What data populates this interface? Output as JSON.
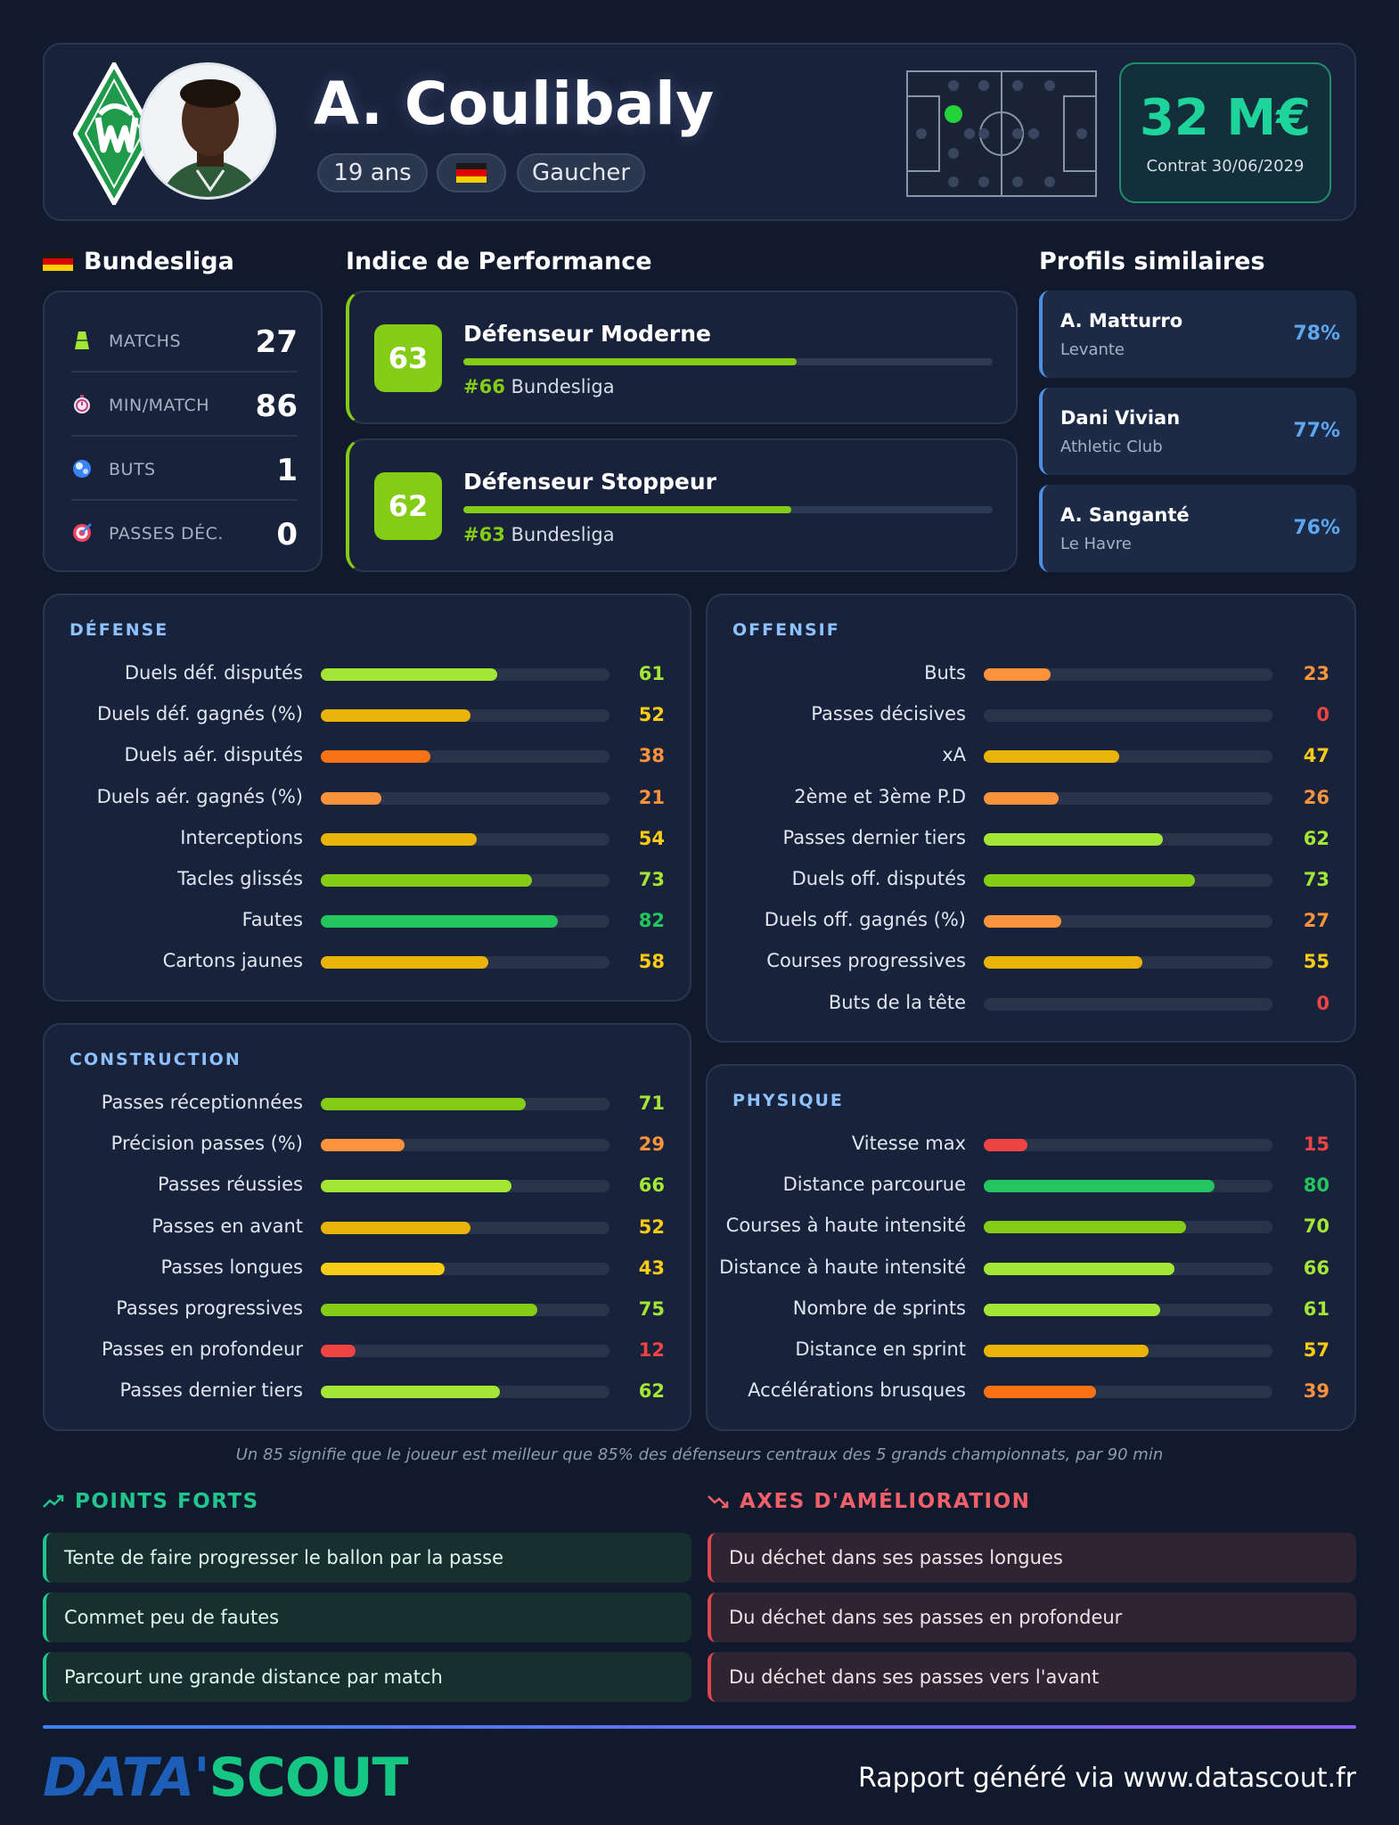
{
  "header": {
    "player_name": "A. Coulibaly",
    "age": "19 ans",
    "foot": "Gaucher",
    "flag_icon": "germany-flag-icon",
    "market_value": "32 M€",
    "contract": "Contrat 30/06/2029",
    "position_dot_color": "#22d33a"
  },
  "league": {
    "name": "Bundesliga",
    "stats": [
      {
        "icon": "pitch-icon",
        "label": "MATCHS",
        "value": "27"
      },
      {
        "icon": "stopwatch-icon",
        "label": "MIN/MATCH",
        "value": "86"
      },
      {
        "icon": "ball-icon",
        "label": "BUTS",
        "value": "1"
      },
      {
        "icon": "target-icon",
        "label": "PASSES DÉC.",
        "value": "0"
      }
    ]
  },
  "performance": {
    "title": "Indice de Performance",
    "items": [
      {
        "score": "63",
        "name": "Défenseur Moderne",
        "rank": "#66",
        "league": "Bundesliga",
        "level": 0.63
      },
      {
        "score": "62",
        "name": "Défenseur Stoppeur",
        "rank": "#63",
        "league": "Bundesliga",
        "level": 0.62
      }
    ]
  },
  "similar": {
    "title": "Profils similaires",
    "items": [
      {
        "name": "A. Matturro",
        "club": "Levante",
        "pct": "78%"
      },
      {
        "name": "Dani Vivian",
        "club": "Athletic Club",
        "pct": "77%"
      },
      {
        "name": "A. Sanganté",
        "club": "Le Havre",
        "pct": "76%"
      }
    ]
  },
  "panels": {
    "defense": {
      "title": "DÉFENSE",
      "metrics": [
        {
          "label": "Duels déf. disputés",
          "value": 61
        },
        {
          "label": "Duels déf. gagnés (%)",
          "value": 52
        },
        {
          "label": "Duels aér. disputés",
          "value": 38
        },
        {
          "label": "Duels aér. gagnés (%)",
          "value": 21
        },
        {
          "label": "Interceptions",
          "value": 54
        },
        {
          "label": "Tacles glissés",
          "value": 73
        },
        {
          "label": "Fautes",
          "value": 82
        },
        {
          "label": "Cartons jaunes",
          "value": 58
        }
      ]
    },
    "offense": {
      "title": "OFFENSIF",
      "metrics": [
        {
          "label": "Buts",
          "value": 23
        },
        {
          "label": "Passes décisives",
          "value": 0
        },
        {
          "label": "xA",
          "value": 47
        },
        {
          "label": "2ème et 3ème P.D",
          "value": 26
        },
        {
          "label": "Passes dernier tiers",
          "value": 62
        },
        {
          "label": "Duels off. disputés",
          "value": 73
        },
        {
          "label": "Duels off. gagnés (%)",
          "value": 27
        },
        {
          "label": "Courses progressives",
          "value": 55
        },
        {
          "label": "Buts de la tête",
          "value": 0
        }
      ]
    },
    "construction": {
      "title": "CONSTRUCTION",
      "metrics": [
        {
          "label": "Passes réceptionnées",
          "value": 71
        },
        {
          "label": "Précision passes (%)",
          "value": 29
        },
        {
          "label": "Passes réussies",
          "value": 66
        },
        {
          "label": "Passes en avant",
          "value": 52
        },
        {
          "label": "Passes longues",
          "value": 43
        },
        {
          "label": "Passes progressives",
          "value": 75
        },
        {
          "label": "Passes en profondeur",
          "value": 12
        },
        {
          "label": "Passes dernier tiers",
          "value": 62
        }
      ]
    },
    "physique": {
      "title": "PHYSIQUE",
      "metrics": [
        {
          "label": "Vitesse max",
          "value": 15
        },
        {
          "label": "Distance parcourue",
          "value": 80
        },
        {
          "label": "Courses à haute intensité",
          "value": 70
        },
        {
          "label": "Distance à haute intensité",
          "value": 66
        },
        {
          "label": "Nombre de sprints",
          "value": 61
        },
        {
          "label": "Distance en sprint",
          "value": 57
        },
        {
          "label": "Accélérations brusques",
          "value": 39
        }
      ]
    }
  },
  "footnote": "Un 85 signifie que le joueur est meilleur que 85% des défenseurs centraux des 5 grands championnats, par 90 min",
  "strengths": {
    "title": "POINTS FORTS",
    "icon": "trending-up-icon",
    "items": [
      "Tente de faire progresser le ballon par la passe",
      "Commet peu de fautes",
      "Parcourt une grande distance par match"
    ]
  },
  "weaknesses": {
    "title": "AXES D'AMÉLIORATION",
    "icon": "trending-down-icon",
    "items": [
      "Du déchet dans ses passes longues",
      "Du déchet dans ses passes en profondeur",
      "Du déchet dans ses passes vers l'avant"
    ]
  },
  "footer": {
    "brand_left": "DATA'",
    "brand_right": "SCOUT",
    "text": "Rapport généré via www.datascout.fr"
  },
  "colors": {
    "green_dark": "#22c55e",
    "green": "#84cc16",
    "lime": "#a3e635",
    "yellow": "#facc15",
    "amber": "#eab308",
    "orange": "#fb923c",
    "orange_dark": "#f97316",
    "red": "#ef4444"
  }
}
